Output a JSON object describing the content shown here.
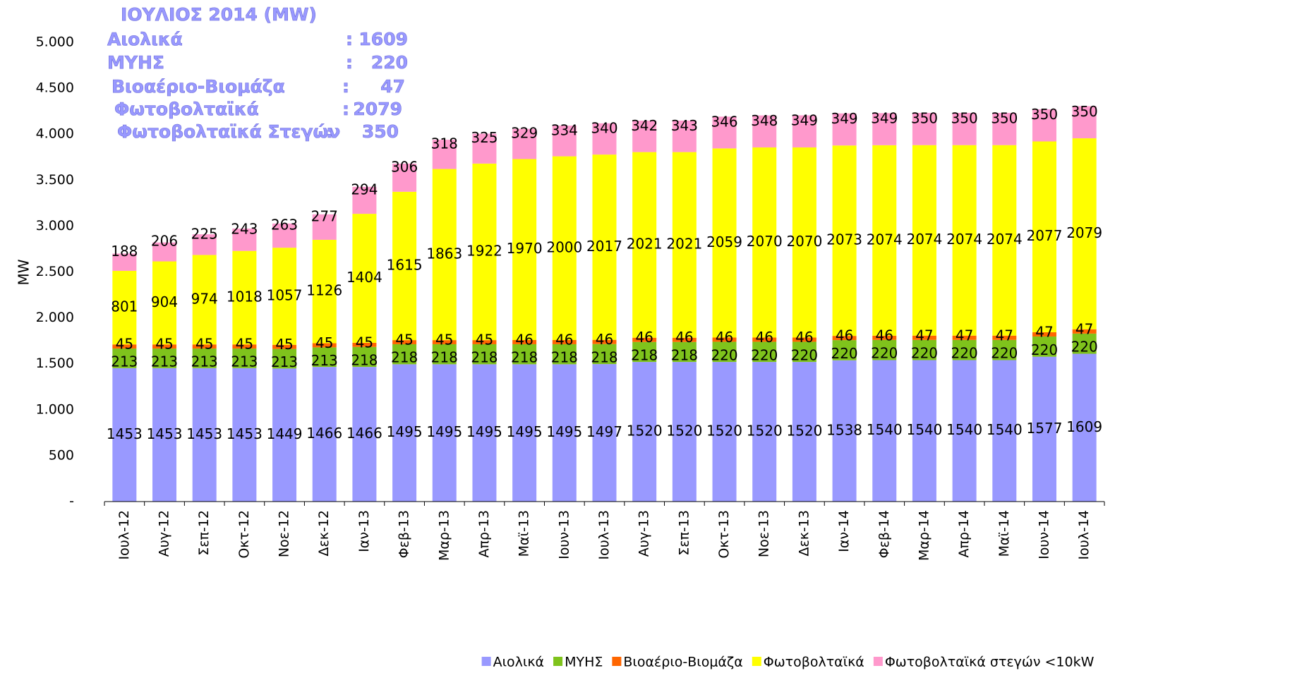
{
  "chart_data": {
    "type": "stacked_bar",
    "annotation": {
      "title": "ΙΟΥΛΙΟΣ 2014 (MW)",
      "rows": [
        {
          "label": "Αιολικά",
          "sep": ":",
          "value": "1609"
        },
        {
          "label": "ΜΥΗΣ",
          "sep": ":",
          "value": "220"
        },
        {
          "label": "Βιοαέριο-Βιομάζα",
          "sep": ":",
          "value": "47"
        },
        {
          "label": "Φωτοβολταϊκά",
          "sep": ":",
          "value": "2079"
        },
        {
          "label": "Φωτοβολταϊκά Στεγών",
          "sep": ":",
          "value": "350"
        }
      ]
    },
    "y_label": "MW",
    "categories": [
      "Ιουλ-12",
      "Αυγ-12",
      "Σεπ-12",
      "Οκτ-12",
      "Νοε-12",
      "Δεκ-12",
      "Ιαν-13",
      "Φεβ-13",
      "Μαρ-13",
      "Απρ-13",
      "Μαϊ-13",
      "Ιουν-13",
      "Ιουλ-13",
      "Αυγ-13",
      "Σεπ-13",
      "Οκτ-13",
      "Νοε-13",
      "Δεκ-13",
      "Ιαν-14",
      "Φεβ-14",
      "Μαρ-14",
      "Απρ-14",
      "Μαϊ-14",
      "Ιουν-14",
      "Ιουλ-14"
    ],
    "series": [
      {
        "name": "Αιολικά",
        "color": "#9999ff",
        "values": [
          1453,
          1453,
          1453,
          1453,
          1449,
          1466,
          1466,
          1495,
          1495,
          1495,
          1495,
          1495,
          1497,
          1520,
          1520,
          1520,
          1520,
          1520,
          1538,
          1540,
          1540,
          1540,
          1540,
          1577,
          1609
        ]
      },
      {
        "name": "ΜΥΗΣ",
        "color": "#7fc31c",
        "values": [
          213,
          213,
          213,
          213,
          213,
          213,
          218,
          218,
          218,
          218,
          218,
          218,
          218,
          218,
          218,
          220,
          220,
          220,
          220,
          220,
          220,
          220,
          220,
          220,
          220
        ]
      },
      {
        "name": "Βιοαέριο-Βιομάζα",
        "color": "#ff6600",
        "values": [
          45,
          45,
          45,
          45,
          45,
          45,
          45,
          45,
          45,
          45,
          46,
          46,
          46,
          46,
          46,
          46,
          46,
          46,
          46,
          46,
          47,
          47,
          47,
          47,
          47
        ]
      },
      {
        "name": "Φωτοβολταϊκά",
        "color": "#ffff00",
        "values": [
          801,
          904,
          974,
          1018,
          1057,
          1126,
          1404,
          1615,
          1863,
          1922,
          1970,
          2000,
          2017,
          2021,
          2021,
          2059,
          2070,
          2070,
          2073,
          2074,
          2074,
          2074,
          2074,
          2077,
          2079
        ]
      },
      {
        "name": "Φωτοβολταϊκά στεγών <10kW",
        "color": "#ff99cc",
        "values": [
          188,
          206,
          225,
          243,
          263,
          277,
          294,
          306,
          318,
          325,
          329,
          334,
          340,
          342,
          343,
          346,
          348,
          349,
          349,
          349,
          350,
          350,
          350,
          350,
          350
        ]
      }
    ],
    "ylim": [
      0,
      5000
    ],
    "yticks": [
      {
        "value": 0,
        "label": "-"
      },
      500,
      {
        "value": 1000,
        "label": "1.000"
      },
      {
        "value": 1500,
        "label": "1.500"
      },
      {
        "value": 2000,
        "label": "2.000"
      },
      {
        "value": 2500,
        "label": "2.500"
      },
      {
        "value": 3000,
        "label": "3.000"
      },
      {
        "value": 3500,
        "label": "3.500"
      },
      {
        "value": 4000,
        "label": "4.000"
      },
      {
        "value": 4500,
        "label": "4.500"
      },
      {
        "value": 5000,
        "label": "5.000"
      }
    ],
    "grid": false,
    "legend": "bottom"
  }
}
